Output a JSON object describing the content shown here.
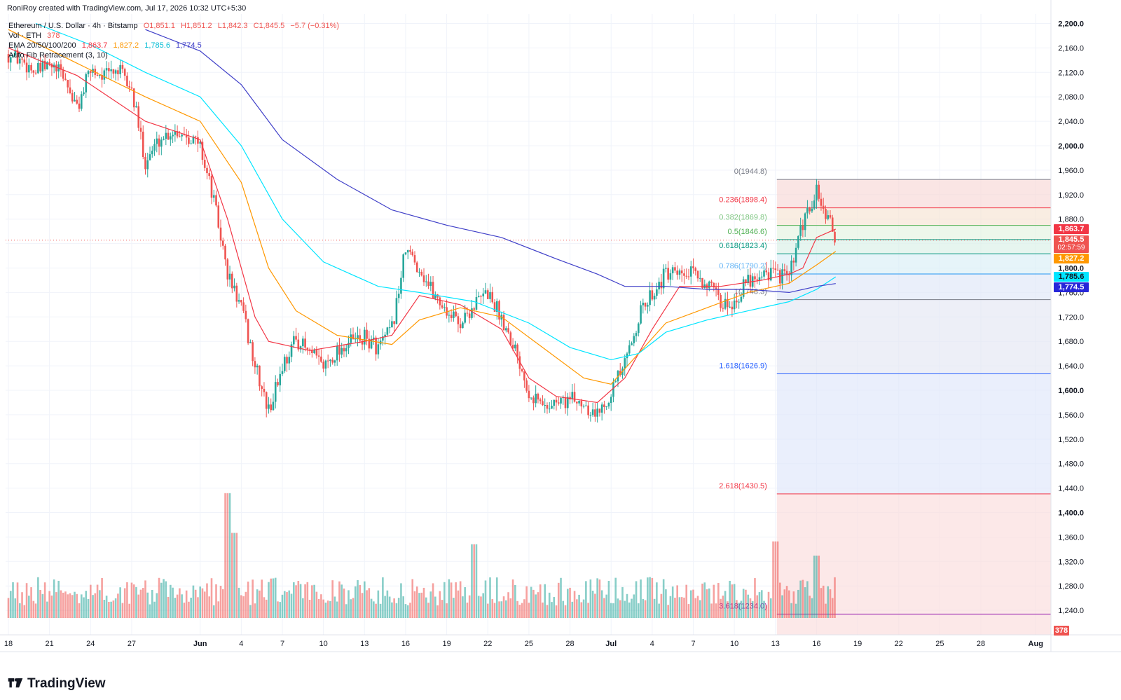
{
  "header": {
    "attribution": "RoniRoy created with TradingView.com, Jul 17, 2026 10:32 UTC+5:30"
  },
  "legend": {
    "symbol": "Ethereum / U.S. Dollar · 4h · Bitstamp",
    "ohlc_o": "O1,851.1",
    "ohlc_h": "H1,851.2",
    "ohlc_l": "L1,842.3",
    "ohlc_c": "C1,845.5",
    "change": "−5.7 (−0.31%)",
    "vol_label": "Vol · ETH",
    "vol_value": "378",
    "ema_label": "EMA 20/50/100/200",
    "ema20": "1,863.7",
    "ema50": "1,827.2",
    "ema100": "1,785.6",
    "ema200": "1,774.5",
    "fib_label": "Auto Fib Retracement (3, 10)"
  },
  "brand": {
    "logo_text": "TradingView"
  },
  "price_tags": {
    "ema20": "1,863.7",
    "last": "1,845.5",
    "countdown": "02:57:59",
    "ema50": "1,827.2",
    "ema100": "1,785.6",
    "ema200": "1,774.5",
    "volume": "378"
  },
  "colors": {
    "up": "#26a69a",
    "down": "#ef5350",
    "ema20": "#f23645",
    "ema50": "#ff9800",
    "ema100": "#00e5ff",
    "ema200": "#3f3fc8",
    "grid": "#f0f3fa"
  },
  "chart_data": {
    "type": "candlestick",
    "symbol": "Ethereum / U.S. Dollar",
    "interval": "4h",
    "exchange": "Bitstamp",
    "y_axis": {
      "ticks": [
        1240,
        1280,
        1320,
        1360,
        1400,
        1440,
        1480,
        1520,
        1560,
        1600,
        1640,
        1680,
        1720,
        1760,
        1800,
        1840,
        1880,
        1920,
        1960,
        2000,
        2040,
        2080,
        2120,
        2160,
        2200
      ],
      "tick_labels": [
        "1,240",
        "1,280",
        "1,320",
        "1,360",
        "1,400",
        "1,440",
        "1,480",
        "1,520",
        "1,560",
        "1,600",
        "1,640",
        "1,680",
        "1,720",
        "1,760",
        "1,800",
        "1,840",
        "1,880",
        "1,920",
        "1,960",
        "2,000",
        "2,040",
        "2,080",
        "2,120",
        "2,160",
        "2,200"
      ],
      "bold_labels": [
        "1,600.0",
        "1,800.0",
        "2,000.0",
        "2,200.0",
        "1,400.0"
      ]
    },
    "x_axis": {
      "ticks": [
        {
          "label": "18",
          "day": 0
        },
        {
          "label": "21",
          "day": 3
        },
        {
          "label": "24",
          "day": 6
        },
        {
          "label": "27",
          "day": 9
        },
        {
          "label": "Jun",
          "day": 14
        },
        {
          "label": "4",
          "day": 17
        },
        {
          "label": "7",
          "day": 20
        },
        {
          "label": "10",
          "day": 23
        },
        {
          "label": "13",
          "day": 26
        },
        {
          "label": "16",
          "day": 29
        },
        {
          "label": "19",
          "day": 32
        },
        {
          "label": "22",
          "day": 35
        },
        {
          "label": "25",
          "day": 38
        },
        {
          "label": "28",
          "day": 41
        },
        {
          "label": "Jul",
          "day": 44
        },
        {
          "label": "4",
          "day": 47
        },
        {
          "label": "7",
          "day": 50
        },
        {
          "label": "10",
          "day": 53
        },
        {
          "label": "13",
          "day": 56
        },
        {
          "label": "16",
          "day": 59
        },
        {
          "label": "19",
          "day": 62
        },
        {
          "label": "22",
          "day": 65
        },
        {
          "label": "25",
          "day": 68
        },
        {
          "label": "28",
          "day": 71
        },
        {
          "label": "Aug",
          "day": 75
        }
      ]
    },
    "ohlc_summary": {
      "open": 1851.1,
      "high": 1851.2,
      "low": 1842.3,
      "close": 1845.5,
      "change": -5.7,
      "change_pct": -0.31
    },
    "close_path": [
      [
        0,
        2150
      ],
      [
        1,
        2140
      ],
      [
        2,
        2120
      ],
      [
        3,
        2130
      ],
      [
        4,
        2115
      ],
      [
        5,
        2060
      ],
      [
        6,
        2125
      ],
      [
        7,
        2115
      ],
      [
        8,
        2125
      ],
      [
        9,
        2090
      ],
      [
        10,
        1975
      ],
      [
        11,
        2010
      ],
      [
        12,
        2025
      ],
      [
        13,
        2020
      ],
      [
        14,
        2000
      ],
      [
        15,
        1910
      ],
      [
        16,
        1790
      ],
      [
        17,
        1735
      ],
      [
        18,
        1640
      ],
      [
        19,
        1565
      ],
      [
        20,
        1640
      ],
      [
        21,
        1685
      ],
      [
        22,
        1660
      ],
      [
        23,
        1640
      ],
      [
        24,
        1665
      ],
      [
        25,
        1680
      ],
      [
        26,
        1685
      ],
      [
        27,
        1670
      ],
      [
        28,
        1700
      ],
      [
        29,
        1830
      ],
      [
        30,
        1800
      ],
      [
        31,
        1760
      ],
      [
        32,
        1730
      ],
      [
        33,
        1710
      ],
      [
        34,
        1740
      ],
      [
        35,
        1760
      ],
      [
        36,
        1720
      ],
      [
        37,
        1670
      ],
      [
        38,
        1600
      ],
      [
        39,
        1575
      ],
      [
        40,
        1580
      ],
      [
        41,
        1585
      ],
      [
        42,
        1580
      ],
      [
        43,
        1560
      ],
      [
        44,
        1600
      ],
      [
        45,
        1640
      ],
      [
        46,
        1720
      ],
      [
        47,
        1760
      ],
      [
        48,
        1790
      ],
      [
        49,
        1785
      ],
      [
        50,
        1790
      ],
      [
        51,
        1775
      ],
      [
        52,
        1740
      ],
      [
        53,
        1745
      ],
      [
        54,
        1780
      ],
      [
        55,
        1795
      ],
      [
        56,
        1790
      ],
      [
        57,
        1785
      ],
      [
        58,
        1870
      ],
      [
        59,
        1925
      ],
      [
        60,
        1870
      ],
      [
        60.4,
        1845.5
      ]
    ],
    "wick_extremes": {
      "high": 1944.8,
      "low": 1748.3,
      "range_low": 1505,
      "range_high": 2210
    },
    "ema_series": [
      {
        "name": "EMA 20",
        "last": 1863.7,
        "points": [
          [
            0,
            2160
          ],
          [
            5,
            2115
          ],
          [
            10,
            2040
          ],
          [
            14,
            2010
          ],
          [
            16,
            1880
          ],
          [
            18,
            1720
          ],
          [
            19,
            1680
          ],
          [
            22,
            1665
          ],
          [
            26,
            1680
          ],
          [
            28,
            1690
          ],
          [
            30,
            1755
          ],
          [
            33,
            1740
          ],
          [
            36,
            1700
          ],
          [
            38,
            1620
          ],
          [
            40,
            1590
          ],
          [
            43,
            1580
          ],
          [
            45,
            1620
          ],
          [
            47,
            1700
          ],
          [
            49,
            1770
          ],
          [
            52,
            1770
          ],
          [
            55,
            1780
          ],
          [
            57,
            1790
          ],
          [
            58,
            1800
          ],
          [
            59,
            1850
          ],
          [
            60.4,
            1863.7
          ]
        ]
      },
      {
        "name": "EMA 50",
        "last": 1827.2,
        "points": [
          [
            0,
            2190
          ],
          [
            5,
            2135
          ],
          [
            10,
            2080
          ],
          [
            14,
            2040
          ],
          [
            17,
            1940
          ],
          [
            19,
            1800
          ],
          [
            21,
            1730
          ],
          [
            24,
            1690
          ],
          [
            28,
            1675
          ],
          [
            30,
            1715
          ],
          [
            33,
            1735
          ],
          [
            36,
            1720
          ],
          [
            39,
            1670
          ],
          [
            42,
            1620
          ],
          [
            44,
            1610
          ],
          [
            46,
            1660
          ],
          [
            48,
            1710
          ],
          [
            51,
            1735
          ],
          [
            54,
            1760
          ],
          [
            57,
            1775
          ],
          [
            59,
            1805
          ],
          [
            60.4,
            1827.2
          ]
        ]
      },
      {
        "name": "EMA 100",
        "last": 1785.6,
        "points": [
          [
            2,
            2200
          ],
          [
            6,
            2165
          ],
          [
            10,
            2120
          ],
          [
            14,
            2080
          ],
          [
            17,
            2000
          ],
          [
            20,
            1880
          ],
          [
            23,
            1810
          ],
          [
            27,
            1770
          ],
          [
            30,
            1760
          ],
          [
            34,
            1745
          ],
          [
            38,
            1710
          ],
          [
            41,
            1670
          ],
          [
            44,
            1650
          ],
          [
            46,
            1660
          ],
          [
            48,
            1695
          ],
          [
            51,
            1715
          ],
          [
            54,
            1730
          ],
          [
            57,
            1745
          ],
          [
            59,
            1765
          ],
          [
            60.4,
            1785.6
          ]
        ]
      },
      {
        "name": "EMA 200",
        "last": 1774.5,
        "points": [
          [
            10,
            2190
          ],
          [
            14,
            2155
          ],
          [
            17,
            2100
          ],
          [
            20,
            2010
          ],
          [
            24,
            1945
          ],
          [
            28,
            1895
          ],
          [
            32,
            1870
          ],
          [
            36,
            1850
          ],
          [
            40,
            1815
          ],
          [
            43,
            1790
          ],
          [
            45,
            1770
          ],
          [
            48,
            1770
          ],
          [
            51,
            1765
          ],
          [
            54,
            1765
          ],
          [
            57,
            1760
          ],
          [
            59,
            1770
          ],
          [
            60.4,
            1774.5
          ]
        ]
      }
    ],
    "fib_levels": [
      {
        "label": "0(1944.8)",
        "value": 1944.8
      },
      {
        "label": "0.236(1898.4)",
        "value": 1898.4
      },
      {
        "label": "0.382(1869.8)",
        "value": 1869.8
      },
      {
        "label": "0.5(1846.6)",
        "value": 1846.6
      },
      {
        "label": "0.618(1823.4)",
        "value": 1823.4
      },
      {
        "label": "0.786(1790.2)",
        "value": 1790.2
      },
      {
        "label": "1(1748.3)",
        "value": 1748.3
      },
      {
        "label": "1.618(1626.9)",
        "value": 1626.9
      },
      {
        "label": "2.618(1430.5)",
        "value": 1430.5
      },
      {
        "label": "3.618(1234.0)",
        "value": 1234.0
      }
    ],
    "fib_start_day": 56,
    "volume_last": 378,
    "volume_spikes": [
      [
        16,
        1450
      ],
      [
        16.5,
        1380
      ],
      [
        34,
        1360
      ],
      [
        56,
        1365
      ],
      [
        59,
        1340
      ]
    ]
  }
}
